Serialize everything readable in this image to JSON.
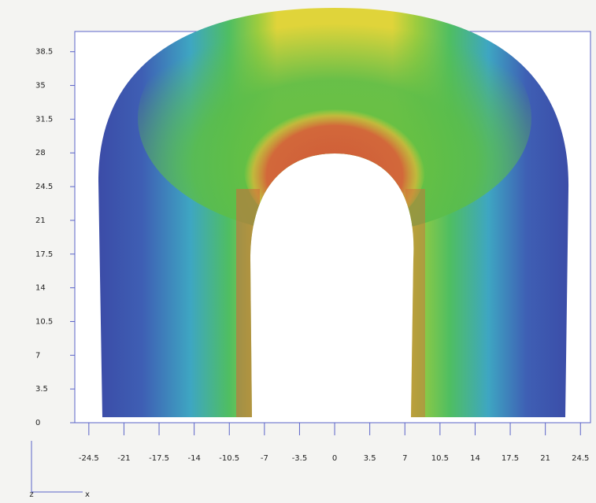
{
  "chart_data": {
    "type": "contour",
    "xlim": [
      -25.9,
      25.5
    ],
    "ylim": [
      0,
      40.6
    ],
    "xticks": [
      -24.5,
      -21,
      -17.5,
      -14,
      -10.5,
      -7,
      -3.5,
      0,
      3.5,
      7,
      10.5,
      14,
      17.5,
      21,
      24.5
    ],
    "yticks": [
      0,
      3.5,
      7,
      10.5,
      14,
      17.5,
      21,
      24.5,
      28,
      31.5,
      35,
      38.5
    ],
    "triad_labels": [
      "z",
      "x"
    ]
  }
}
